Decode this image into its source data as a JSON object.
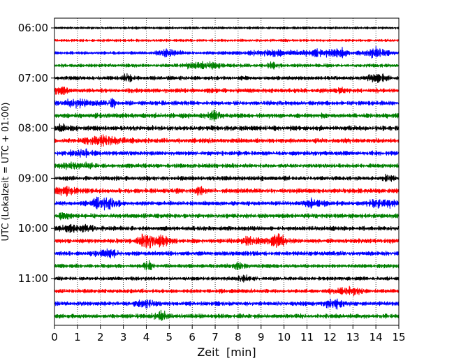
{
  "chart_data": {
    "type": "line",
    "title": "",
    "xlabel": "Zeit  [min]",
    "ylabel": "UTC (Lokalzeit = UTC + 01:00)",
    "xlim": [
      0,
      15
    ],
    "x_ticks": [
      0,
      1,
      2,
      3,
      4,
      5,
      6,
      7,
      8,
      9,
      10,
      11,
      12,
      13,
      14,
      15
    ],
    "y_tick_labels": [
      "06:00",
      "07:00",
      "08:00",
      "09:00",
      "10:00",
      "11:00"
    ],
    "grid": "vertical dotted lines at each minute",
    "trace_interval_minutes": 15,
    "trace_colors_cycle": [
      "#000000",
      "#ff0000",
      "#0000ff",
      "#008000"
    ],
    "traces": [
      {
        "start": "06:00",
        "color": "#000000",
        "amplitude": 0.25,
        "events": []
      },
      {
        "start": "06:15",
        "color": "#ff0000",
        "amplitude": 0.25,
        "events": []
      },
      {
        "start": "06:30",
        "color": "#0000ff",
        "amplitude": 0.4,
        "events": [
          {
            "t": 5.0,
            "w": 0.5,
            "a": 1.4
          },
          {
            "t": 9.5,
            "w": 1.2,
            "a": 1.2
          },
          {
            "t": 11.5,
            "w": 0.6,
            "a": 1.6
          },
          {
            "t": 12.5,
            "w": 0.3,
            "a": 2.2
          },
          {
            "t": 14.0,
            "w": 0.5,
            "a": 2.6
          }
        ]
      },
      {
        "start": "06:45",
        "color": "#008000",
        "amplitude": 0.5,
        "events": [
          {
            "t": 6.5,
            "w": 0.8,
            "a": 1.4
          },
          {
            "t": 9.5,
            "w": 0.2,
            "a": 2.0
          }
        ]
      },
      {
        "start": "07:00",
        "color": "#000000",
        "amplitude": 0.6,
        "events": [
          {
            "t": 3.2,
            "w": 0.2,
            "a": 2.0
          },
          {
            "t": 14.0,
            "w": 0.5,
            "a": 1.6
          }
        ]
      },
      {
        "start": "07:15",
        "color": "#ff0000",
        "amplitude": 0.7,
        "events": [
          {
            "t": 0.3,
            "w": 0.3,
            "a": 1.6
          },
          {
            "t": 12.5,
            "w": 0.2,
            "a": 1.6
          }
        ]
      },
      {
        "start": "07:30",
        "color": "#0000ff",
        "amplitude": 0.7,
        "events": [
          {
            "t": 1.0,
            "w": 0.8,
            "a": 1.5
          },
          {
            "t": 2.5,
            "w": 0.2,
            "a": 2.0
          }
        ]
      },
      {
        "start": "07:45",
        "color": "#008000",
        "amplitude": 0.8,
        "events": [
          {
            "t": 7.0,
            "w": 0.3,
            "a": 1.6
          }
        ]
      },
      {
        "start": "08:00",
        "color": "#000000",
        "amplitude": 0.8,
        "events": [
          {
            "t": 0.3,
            "w": 0.3,
            "a": 1.6
          }
        ]
      },
      {
        "start": "08:15",
        "color": "#ff0000",
        "amplitude": 0.8,
        "events": [
          {
            "t": 2.2,
            "w": 0.8,
            "a": 1.8
          }
        ]
      },
      {
        "start": "08:30",
        "color": "#0000ff",
        "amplitude": 0.7,
        "events": [
          {
            "t": 1.2,
            "w": 0.5,
            "a": 1.6
          }
        ]
      },
      {
        "start": "08:45",
        "color": "#008000",
        "amplitude": 0.7,
        "events": [
          {
            "t": 1.0,
            "w": 0.6,
            "a": 1.4
          }
        ]
      },
      {
        "start": "09:00",
        "color": "#000000",
        "amplitude": 0.7,
        "events": [
          {
            "t": 14.5,
            "w": 0.2,
            "a": 1.6
          }
        ]
      },
      {
        "start": "09:15",
        "color": "#ff0000",
        "amplitude": 0.8,
        "events": [
          {
            "t": 0.5,
            "w": 0.5,
            "a": 1.6
          },
          {
            "t": 6.3,
            "w": 0.3,
            "a": 1.5
          }
        ]
      },
      {
        "start": "09:30",
        "color": "#0000ff",
        "amplitude": 0.7,
        "events": [
          {
            "t": 2.2,
            "w": 0.6,
            "a": 3.0
          },
          {
            "t": 11.3,
            "w": 0.5,
            "a": 1.6
          },
          {
            "t": 14.3,
            "w": 0.6,
            "a": 2.2
          }
        ]
      },
      {
        "start": "09:45",
        "color": "#008000",
        "amplitude": 0.7,
        "events": [
          {
            "t": 0.4,
            "w": 0.3,
            "a": 1.6
          }
        ]
      },
      {
        "start": "10:00",
        "color": "#000000",
        "amplitude": 0.7,
        "events": [
          {
            "t": 0.9,
            "w": 0.8,
            "a": 1.4
          }
        ]
      },
      {
        "start": "10:15",
        "color": "#ff0000",
        "amplitude": 0.7,
        "events": [
          {
            "t": 4.0,
            "w": 0.4,
            "a": 3.2
          },
          {
            "t": 4.6,
            "w": 0.4,
            "a": 2.6
          },
          {
            "t": 9.7,
            "w": 0.4,
            "a": 3.2
          },
          {
            "t": 8.5,
            "w": 0.5,
            "a": 1.6
          }
        ]
      },
      {
        "start": "10:30",
        "color": "#0000ff",
        "amplitude": 0.7,
        "events": [
          {
            "t": 2.3,
            "w": 0.5,
            "a": 1.6
          }
        ]
      },
      {
        "start": "10:45",
        "color": "#008000",
        "amplitude": 0.6,
        "events": [
          {
            "t": 4.1,
            "w": 0.2,
            "a": 2.0
          },
          {
            "t": 8.0,
            "w": 0.3,
            "a": 1.5
          }
        ]
      },
      {
        "start": "11:00",
        "color": "#000000",
        "amplitude": 0.5,
        "events": [
          {
            "t": 8.2,
            "w": 0.3,
            "a": 1.5
          }
        ]
      },
      {
        "start": "11:15",
        "color": "#ff0000",
        "amplitude": 0.6,
        "events": [
          {
            "t": 12.8,
            "w": 0.6,
            "a": 1.8
          }
        ]
      },
      {
        "start": "11:30",
        "color": "#0000ff",
        "amplitude": 0.7,
        "events": [
          {
            "t": 4.0,
            "w": 0.5,
            "a": 1.4
          },
          {
            "t": 12.2,
            "w": 0.5,
            "a": 1.7
          }
        ]
      },
      {
        "start": "11:45",
        "color": "#008000",
        "amplitude": 0.7,
        "events": [
          {
            "t": 4.6,
            "w": 0.3,
            "a": 1.8
          }
        ]
      }
    ]
  }
}
